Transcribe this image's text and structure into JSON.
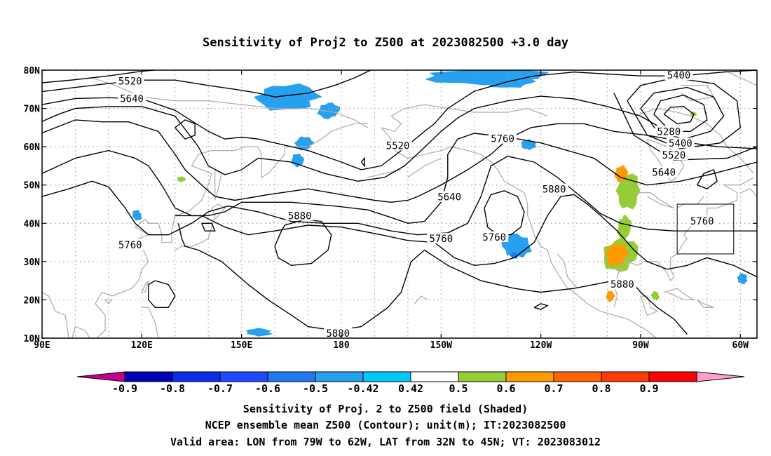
{
  "chart_data": {
    "type": "heatmap",
    "title": "Sensitivity of Proj2 to Z500 at 2023082500 +3.0 day",
    "projection": "cylindrical equidistant",
    "xlim": [
      90,
      305
    ],
    "ylim": [
      10,
      80
    ],
    "grid": true,
    "x_ticks": [
      {
        "lon": 90,
        "label": "90E"
      },
      {
        "lon": 120,
        "label": "120E"
      },
      {
        "lon": 150,
        "label": "150E"
      },
      {
        "lon": 180,
        "label": "180"
      },
      {
        "lon": 210,
        "label": "150W"
      },
      {
        "lon": 240,
        "label": "120W"
      },
      {
        "lon": 270,
        "label": "90W"
      },
      {
        "lon": 300,
        "label": "60W"
      }
    ],
    "y_ticks": [
      {
        "lat": 10,
        "label": "10N"
      },
      {
        "lat": 20,
        "label": "20N"
      },
      {
        "lat": 30,
        "label": "30N"
      },
      {
        "lat": 40,
        "label": "40N"
      },
      {
        "lat": 50,
        "label": "50N"
      },
      {
        "lat": 60,
        "label": "60N"
      },
      {
        "lat": 70,
        "label": "70N"
      },
      {
        "lat": 80,
        "label": "80N"
      }
    ],
    "colorbar": {
      "ticks": [
        "-0.9",
        "-0.8",
        "-0.7",
        "-0.6",
        "-0.5",
        "-0.42",
        "0.42",
        "0.5",
        "0.6",
        "0.7",
        "0.8",
        "0.9"
      ],
      "colors": [
        "#c0008c",
        "#0000b4",
        "#0a2de6",
        "#1e4bff",
        "#1e78f0",
        "#28a0f0",
        "#00c8ff",
        "#ffffff",
        "#96cd37",
        "#ff9b00",
        "#ff6400",
        "#ff3c00",
        "#ff0000",
        "#ff9ec8"
      ]
    },
    "contour_labels": [
      {
        "text": "5520",
        "lon": 116.5,
        "lat": 77.2
      },
      {
        "text": "5640",
        "lon": 117,
        "lat": 72.6
      },
      {
        "text": "5520",
        "lon": 197,
        "lat": 60.3
      },
      {
        "text": "5760",
        "lon": 228.5,
        "lat": 62.1
      },
      {
        "text": "5400",
        "lon": 281.5,
        "lat": 78.7
      },
      {
        "text": "5280",
        "lon": 278.5,
        "lat": 64.0
      },
      {
        "text": "5400",
        "lon": 282,
        "lat": 60.9
      },
      {
        "text": "5520",
        "lon": 280,
        "lat": 57.8
      },
      {
        "text": "5640",
        "lon": 277,
        "lat": 53.3
      },
      {
        "text": "5640",
        "lon": 212.5,
        "lat": 46.9
      },
      {
        "text": "5880",
        "lon": 244,
        "lat": 48.9
      },
      {
        "text": "5880",
        "lon": 167.5,
        "lat": 42.0
      },
      {
        "text": "5760",
        "lon": 288.5,
        "lat": 40.6
      },
      {
        "text": "5760",
        "lon": 210,
        "lat": 36.0
      },
      {
        "text": "5760",
        "lon": 226,
        "lat": 36.4
      },
      {
        "text": "5760",
        "lon": 116.5,
        "lat": 34.4
      },
      {
        "text": "5880",
        "lon": 264.5,
        "lat": 24.1
      },
      {
        "text": "5880",
        "lon": 179,
        "lat": 11.3
      }
    ],
    "negative_patches": [
      {
        "lon": 163,
        "lat": 73.0,
        "rlon": 12,
        "rlat": 4.0,
        "value": -0.45
      },
      {
        "lon": 176,
        "lat": 69.5,
        "rlon": 4,
        "rlat": 2.5,
        "value": -0.5
      },
      {
        "lon": 223,
        "lat": 78.5,
        "rlon": 22,
        "rlat": 2.6,
        "value": -0.5
      },
      {
        "lon": 231,
        "lat": 77.0,
        "rlon": 9,
        "rlat": 2.0,
        "value": -0.45
      },
      {
        "lon": 169,
        "lat": 61.0,
        "rlon": 3.2,
        "rlat": 2.4,
        "value": -0.5
      },
      {
        "lon": 167,
        "lat": 56.5,
        "rlon": 2.2,
        "rlat": 2.4,
        "value": -0.45
      },
      {
        "lon": 236.5,
        "lat": 60.5,
        "rlon": 2.8,
        "rlat": 1.8,
        "value": -0.45
      },
      {
        "lon": 233,
        "lat": 34.0,
        "rlon": 5.5,
        "rlat": 4.0,
        "value": -0.5
      },
      {
        "lon": 232,
        "lat": 31.5,
        "rlon": 1.5,
        "rlat": 1.0,
        "value": -0.6
      },
      {
        "lon": 118.5,
        "lat": 42.0,
        "rlon": 1.8,
        "rlat": 1.7,
        "value": -0.5
      },
      {
        "lon": 155,
        "lat": 11.5,
        "rlon": 5,
        "rlat": 1.2,
        "value": -0.45
      },
      {
        "lon": 300.5,
        "lat": 25.5,
        "rlon": 2.0,
        "rlat": 1.6,
        "value": -0.5
      }
    ],
    "positive_patches": [
      {
        "lon": 266,
        "lat": 48.5,
        "rlon": 4.5,
        "rlat": 5.5,
        "value": 0.5
      },
      {
        "lon": 264,
        "lat": 53.0,
        "rlon": 2.5,
        "rlat": 2.5,
        "value": 0.6
      },
      {
        "lon": 265,
        "lat": 39.0,
        "rlon": 2.5,
        "rlat": 4.0,
        "value": 0.5
      },
      {
        "lon": 264,
        "lat": 32.0,
        "rlon": 6.5,
        "rlat": 5.5,
        "value": 0.5
      },
      {
        "lon": 263,
        "lat": 32.0,
        "rlon": 4.0,
        "rlat": 4.0,
        "value": 0.6
      },
      {
        "lon": 261,
        "lat": 21.0,
        "rlon": 1.5,
        "rlat": 2.0,
        "value": 0.6
      },
      {
        "lon": 132,
        "lat": 51.5,
        "rlon": 1.5,
        "rlat": 1.0,
        "value": 0.5
      },
      {
        "lon": 286,
        "lat": 68.5,
        "rlon": 1.2,
        "rlat": 0.8,
        "value": 0.5
      },
      {
        "lon": 274.5,
        "lat": 21.0,
        "rlon": 1.5,
        "rlat": 1.5,
        "value": 0.5
      }
    ],
    "valid_area": {
      "lon": [
        281,
        298
      ],
      "lat": [
        32,
        45
      ]
    }
  },
  "footer": {
    "line1": "Sensitivity of Proj. 2 to Z500 field (Shaded)",
    "line2": "NCEP ensemble mean Z500 (Contour); unit(m); IT:2023082500",
    "line3": "Valid area: LON from 79W to 62W, LAT from 32N to 45N; VT: 2023083012"
  }
}
